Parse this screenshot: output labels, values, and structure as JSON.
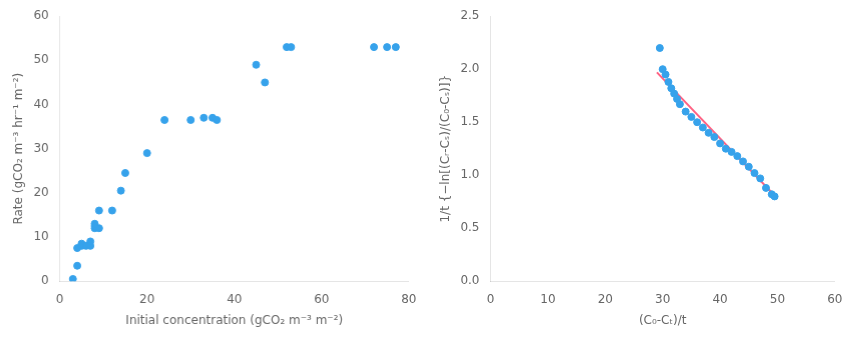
{
  "chart_data": [
    {
      "type": "scatter",
      "x": [
        3,
        4,
        4,
        5,
        5,
        6,
        7,
        7,
        8,
        8,
        8,
        9,
        9,
        12,
        14,
        15,
        20,
        24,
        30,
        33,
        35,
        36,
        45,
        47,
        52,
        53,
        72,
        75,
        77
      ],
      "values": [
        0.5,
        3.5,
        7.5,
        8,
        8.5,
        8,
        8,
        9,
        12,
        12.5,
        13,
        12,
        16,
        16,
        20.5,
        24.5,
        29,
        36.5,
        36.5,
        37,
        37,
        36.5,
        49,
        45,
        53,
        53,
        53,
        53,
        53
      ],
      "xlabel": "Initial concentration (gCO₂ m⁻³ m⁻²)",
      "ylabel": "Rate (gCO₂ m⁻³ hr⁻¹ m⁻²)",
      "xlim": [
        0,
        80
      ],
      "ylim": [
        0,
        60
      ],
      "xticks": [
        0,
        20,
        40,
        60,
        80
      ],
      "yticks": [
        0,
        10,
        20,
        30,
        40,
        50,
        60
      ],
      "grid": false
    },
    {
      "type": "scatter",
      "series": [
        {
          "type": "scatter",
          "x": [
            29.5,
            30.0,
            30.5,
            31.0,
            31.5,
            32.0,
            32.5,
            33.0,
            34.0,
            35.0,
            36.0,
            37.0,
            38.0,
            39.0,
            40.0,
            41.0,
            42.0,
            43.0,
            44.0,
            45.0,
            46.0,
            47.0,
            48.0,
            49.0,
            49.5
          ],
          "values": [
            2.2,
            2.0,
            1.95,
            1.88,
            1.82,
            1.77,
            1.72,
            1.67,
            1.6,
            1.55,
            1.5,
            1.45,
            1.4,
            1.36,
            1.3,
            1.25,
            1.22,
            1.18,
            1.13,
            1.08,
            1.02,
            0.97,
            0.88,
            0.82,
            0.8
          ]
        },
        {
          "type": "line",
          "x": [
            29.0,
            50.0
          ],
          "values": [
            1.97,
            0.78
          ]
        }
      ],
      "xlabel": "(C₀-Cₜ)/t",
      "ylabel": "1/t {−ln[(Cᵣ-Cₛ)/(C₀-Cₛ)]}",
      "xlim": [
        0,
        60
      ],
      "ylim": [
        0,
        2.5
      ],
      "xticks": [
        0,
        10,
        20,
        30,
        40,
        50,
        60
      ],
      "yticks": [
        {
          "value": 0,
          "label": "0.0"
        },
        0.5,
        {
          "value": 1.0,
          "label": "1.0"
        },
        1.5,
        {
          "value": 2.0,
          "label": "2.0"
        },
        2.5
      ],
      "grid": false
    }
  ]
}
